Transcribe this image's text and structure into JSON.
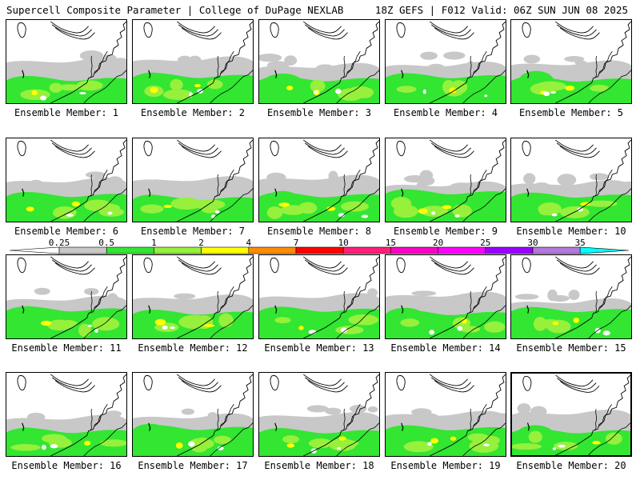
{
  "header": {
    "title": "Supercell Composite Parameter | College of DuPage NEXLAB",
    "run_info": "18Z GEFS | F012 Valid: 06Z SUN JUN 08 2025"
  },
  "members": [
    {
      "label": "Ensemble Member: 1"
    },
    {
      "label": "Ensemble Member: 2"
    },
    {
      "label": "Ensemble Member: 3"
    },
    {
      "label": "Ensemble Member: 4"
    },
    {
      "label": "Ensemble Member: 5"
    },
    {
      "label": "Ensemble Member: 6"
    },
    {
      "label": "Ensemble Member: 7"
    },
    {
      "label": "Ensemble Member: 8"
    },
    {
      "label": "Ensemble Member: 9"
    },
    {
      "label": "Ensemble Member: 10"
    },
    {
      "label": "Ensemble Member: 11"
    },
    {
      "label": "Ensemble Member: 12"
    },
    {
      "label": "Ensemble Member: 13"
    },
    {
      "label": "Ensemble Member: 14"
    },
    {
      "label": "Ensemble Member: 15"
    },
    {
      "label": "Ensemble Member: 16"
    },
    {
      "label": "Ensemble Member: 17"
    },
    {
      "label": "Ensemble Member: 18"
    },
    {
      "label": "Ensemble Member: 19"
    },
    {
      "label": "Ensemble Member: 20",
      "selected": true
    }
  ],
  "colorbar": {
    "ticks": [
      "0.25",
      "0.5",
      "1",
      "2",
      "4",
      "7",
      "10",
      "15",
      "20",
      "25",
      "30",
      "35"
    ],
    "colors": [
      "#ffffff",
      "#c8c8c8",
      "#32e632",
      "#96f03c",
      "#ffff00",
      "#ff8c00",
      "#ff0000",
      "#ff1e78",
      "#ff00c8",
      "#ff00ff",
      "#9a00ff",
      "#b478dc",
      "#00ffff"
    ]
  },
  "map_colors": {
    "low": "#c8c8c8",
    "mid": "#32e632",
    "high": "#96f03c",
    "peak": "#ffff00",
    "coast": "#000000"
  }
}
